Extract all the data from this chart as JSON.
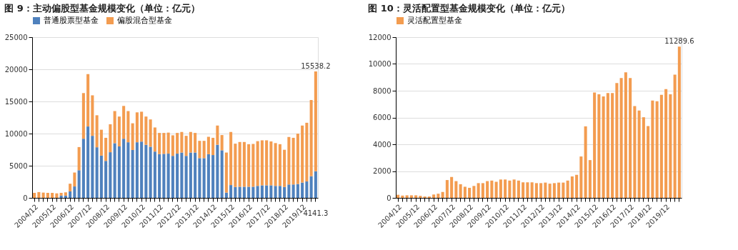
{
  "chart_data": [
    {
      "type": "bar",
      "title": "图 9：主动偏股型基金规模变化（单位：亿元）",
      "stacked": true,
      "legend": "top",
      "grid": "y",
      "categories": [
        "2004/12",
        null,
        null,
        null,
        "2005/12",
        null,
        null,
        null,
        "2006/12",
        null,
        null,
        null,
        "2007/12",
        null,
        null,
        null,
        "2008/12",
        null,
        null,
        null,
        "2009/12",
        null,
        null,
        null,
        "2010/12",
        null,
        null,
        null,
        "2011/12",
        null,
        null,
        null,
        "2012/12",
        null,
        null,
        null,
        "2013/12",
        null,
        null,
        null,
        "2014/12",
        null,
        null,
        null,
        "2015/12",
        null,
        null,
        null,
        "2016/12",
        null,
        null,
        null,
        "2017/12",
        null,
        null,
        null,
        "2018/12",
        null,
        null,
        null,
        "2019/12",
        null,
        null,
        null
      ],
      "ylim": [
        0,
        25000
      ],
      "yticks": [
        0,
        5000,
        10000,
        15000,
        20000,
        25000
      ],
      "series": [
        {
          "name": "普通股票型基金",
          "color": "#4f81bd",
          "values": [
            0,
            0,
            0,
            0,
            0,
            0,
            350,
            350,
            1000,
            1770,
            4300,
            9200,
            11100,
            9650,
            7870,
            6570,
            5750,
            7100,
            8500,
            8000,
            9200,
            8650,
            7450,
            8650,
            8750,
            8250,
            7950,
            7200,
            6800,
            6850,
            6880,
            6530,
            6880,
            7050,
            6530,
            7050,
            7050,
            6180,
            6180,
            6790,
            6660,
            8260,
            7400,
            820,
            1990,
            1690,
            1730,
            1730,
            1730,
            1730,
            1860,
            1950,
            1950,
            1950,
            1860,
            1860,
            1690,
            2080,
            2080,
            2160,
            2380,
            2550,
            3370,
            4141.3
          ],
          "value_labels": [
            null,
            null,
            null,
            null,
            null,
            null,
            null,
            null,
            null,
            null,
            null,
            null,
            null,
            null,
            null,
            null,
            null,
            null,
            null,
            null,
            null,
            null,
            null,
            null,
            null,
            null,
            null,
            null,
            null,
            null,
            null,
            null,
            null,
            null,
            null,
            null,
            null,
            null,
            null,
            null,
            null,
            null,
            null,
            null,
            null,
            null,
            null,
            null,
            null,
            null,
            null,
            null,
            null,
            null,
            null,
            null,
            null,
            null,
            null,
            null,
            null,
            null,
            null,
            "4141.3"
          ]
        },
        {
          "name": "偏股混合型基金",
          "color": "#f39c50",
          "values": [
            780,
            900,
            820,
            780,
            780,
            700,
            430,
            510,
            1200,
            2170,
            3600,
            7100,
            8150,
            6300,
            4980,
            4030,
            3590,
            4350,
            5000,
            4650,
            5100,
            4850,
            4150,
            4650,
            4650,
            4400,
            4250,
            3750,
            3300,
            3250,
            3270,
            3200,
            3220,
            3200,
            3120,
            3200,
            3050,
            2690,
            2690,
            2710,
            2680,
            2990,
            2370,
            6230,
            8260,
            6740,
            6960,
            6960,
            6620,
            6660,
            6960,
            7000,
            7000,
            6830,
            6660,
            6490,
            5790,
            7390,
            7260,
            7830,
            8870,
            9130,
            11850,
            15538.2
          ],
          "value_labels": [
            null,
            null,
            null,
            null,
            null,
            null,
            null,
            null,
            null,
            null,
            null,
            null,
            null,
            null,
            null,
            null,
            null,
            null,
            null,
            null,
            null,
            null,
            null,
            null,
            null,
            null,
            null,
            null,
            null,
            null,
            null,
            null,
            null,
            null,
            null,
            null,
            null,
            null,
            null,
            null,
            null,
            null,
            null,
            null,
            null,
            null,
            null,
            null,
            null,
            null,
            null,
            null,
            null,
            null,
            null,
            null,
            null,
            null,
            null,
            null,
            null,
            null,
            null,
            "15538.2"
          ]
        }
      ]
    },
    {
      "type": "bar",
      "title": "图 10：灵活配置型基金规模变化（单位：亿元）",
      "legend": "top",
      "grid": "y",
      "categories": [
        "2004/12",
        null,
        null,
        null,
        "2005/12",
        null,
        null,
        null,
        "2006/12",
        null,
        null,
        null,
        "2007/12",
        null,
        null,
        null,
        "2008/12",
        null,
        null,
        null,
        "2009/12",
        null,
        null,
        null,
        "2010/12",
        null,
        null,
        null,
        "2011/12",
        null,
        null,
        null,
        "2012/12",
        null,
        null,
        null,
        "2013/12",
        null,
        null,
        null,
        "2014/12",
        null,
        null,
        null,
        "2015/12",
        null,
        null,
        null,
        "2016/12",
        null,
        null,
        null,
        "2017/12",
        null,
        null,
        null,
        "2018/12",
        null,
        null,
        null,
        "2019/12",
        null,
        null,
        null
      ],
      "ylim": [
        0,
        12000
      ],
      "yticks": [
        0,
        2000,
        4000,
        6000,
        8000,
        10000,
        12000
      ],
      "series": [
        {
          "name": "灵活配置型基金",
          "color": "#f39c50",
          "values": [
            230,
            170,
            190,
            190,
            190,
            150,
            100,
            100,
            250,
            310,
            440,
            1330,
            1560,
            1250,
            1020,
            830,
            750,
            890,
            1100,
            1100,
            1250,
            1290,
            1200,
            1370,
            1370,
            1290,
            1370,
            1290,
            1160,
            1160,
            1160,
            1100,
            1100,
            1140,
            1060,
            1100,
            1140,
            1140,
            1290,
            1600,
            1720,
            3090,
            5340,
            2820,
            7870,
            7740,
            7580,
            7830,
            7830,
            8570,
            8950,
            9380,
            8950,
            6850,
            6520,
            6020,
            5360,
            7270,
            7220,
            7700,
            8120,
            7740,
            9200,
            11289.6
          ],
          "value_labels": [
            null,
            null,
            null,
            null,
            null,
            null,
            null,
            null,
            null,
            null,
            null,
            null,
            null,
            null,
            null,
            null,
            null,
            null,
            null,
            null,
            null,
            null,
            null,
            null,
            null,
            null,
            null,
            null,
            null,
            null,
            null,
            null,
            null,
            null,
            null,
            null,
            null,
            null,
            null,
            null,
            null,
            null,
            null,
            null,
            null,
            null,
            null,
            null,
            null,
            null,
            null,
            null,
            null,
            null,
            null,
            null,
            null,
            null,
            null,
            null,
            null,
            null,
            null,
            "11289.6"
          ]
        }
      ]
    }
  ]
}
